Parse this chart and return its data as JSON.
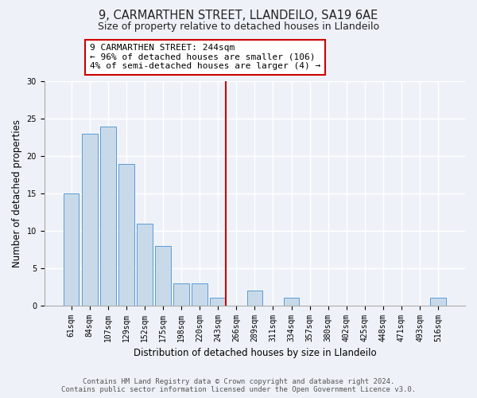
{
  "title": "9, CARMARTHEN STREET, LLANDEILO, SA19 6AE",
  "subtitle": "Size of property relative to detached houses in Llandeilo",
  "xlabel": "Distribution of detached houses by size in Llandeilo",
  "ylabel": "Number of detached properties",
  "bar_labels": [
    "61sqm",
    "84sqm",
    "107sqm",
    "129sqm",
    "152sqm",
    "175sqm",
    "198sqm",
    "220sqm",
    "243sqm",
    "266sqm",
    "289sqm",
    "311sqm",
    "334sqm",
    "357sqm",
    "380sqm",
    "402sqm",
    "425sqm",
    "448sqm",
    "471sqm",
    "493sqm",
    "516sqm"
  ],
  "bar_values": [
    15,
    23,
    24,
    19,
    11,
    8,
    3,
    3,
    1,
    0,
    2,
    0,
    1,
    0,
    0,
    0,
    0,
    0,
    0,
    0,
    1
  ],
  "bar_color": "#c8daea",
  "bar_edge_color": "#5b9bd5",
  "marker_index": 8,
  "marker_line_color": "#cc0000",
  "annotation_text_line1": "9 CARMARTHEN STREET: 244sqm",
  "annotation_text_line2": "← 96% of detached houses are smaller (106)",
  "annotation_text_line3": "4% of semi-detached houses are larger (4) →",
  "annotation_box_color": "#ffffff",
  "annotation_box_edge_color": "#cc0000",
  "ylim": [
    0,
    30
  ],
  "yticks": [
    0,
    5,
    10,
    15,
    20,
    25,
    30
  ],
  "footnote_line1": "Contains HM Land Registry data © Crown copyright and database right 2024.",
  "footnote_line2": "Contains public sector information licensed under the Open Government Licence v3.0.",
  "background_color": "#eef2f8",
  "grid_color": "#ffffff",
  "title_fontsize": 10.5,
  "subtitle_fontsize": 9,
  "axis_label_fontsize": 8.5,
  "tick_fontsize": 7,
  "annotation_fontsize": 8,
  "footnote_fontsize": 6.5
}
